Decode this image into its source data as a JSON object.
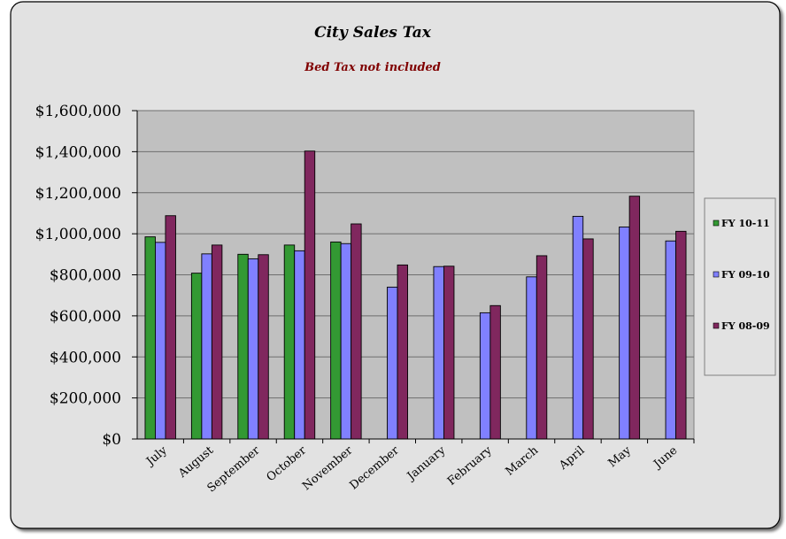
{
  "chart_data": {
    "type": "bar",
    "title": "City Sales Tax",
    "subtitle": "Bed Tax not included",
    "xlabel": "",
    "ylabel": "",
    "ylim": [
      0,
      1600000
    ],
    "ytick_labels": [
      "$0",
      "$200,000",
      "$400,000",
      "$600,000",
      "$800,000",
      "$1,000,000",
      "$1,200,000",
      "$1,400,000",
      "$1,600,000"
    ],
    "categories": [
      "July",
      "August",
      "September",
      "October",
      "November",
      "December",
      "January",
      "February",
      "March",
      "April",
      "May",
      "June"
    ],
    "series": [
      {
        "name": "FY 10-11",
        "color": "#339933",
        "values": [
          985000,
          808000,
          900000,
          945000,
          960000,
          null,
          null,
          null,
          null,
          null,
          null,
          null
        ]
      },
      {
        "name": "FY 09-10",
        "color": "#8080ff",
        "values": [
          958000,
          902000,
          878000,
          917000,
          952000,
          740000,
          840000,
          615000,
          790000,
          1085000,
          1033000,
          965000
        ]
      },
      {
        "name": "FY 08-09",
        "color": "#80275e",
        "values": [
          1088000,
          945000,
          898000,
          1403000,
          1048000,
          848000,
          842000,
          650000,
          893000,
          975000,
          1183000,
          1012000
        ]
      }
    ],
    "grid": true,
    "legend_position": "right",
    "colors": {
      "plot_background": "#c0c0c0",
      "chart_background": "#e2e2e2",
      "subtitle": "#800000"
    }
  }
}
